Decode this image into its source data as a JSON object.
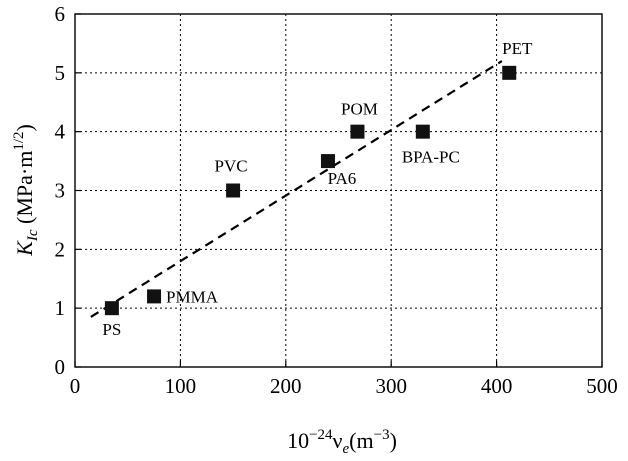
{
  "chart_data": {
    "type": "scatter",
    "xlim": [
      0,
      500
    ],
    "ylim": [
      0,
      6
    ],
    "x_ticks": [
      0,
      100,
      200,
      300,
      400,
      500
    ],
    "y_ticks": [
      0,
      1,
      2,
      3,
      4,
      5,
      6
    ],
    "grid": true,
    "points": [
      {
        "label": "PS",
        "x": 35,
        "y": 1.0
      },
      {
        "label": "PMMA",
        "x": 75,
        "y": 1.2
      },
      {
        "label": "PVC",
        "x": 150,
        "y": 3.0
      },
      {
        "label": "PA6",
        "x": 240,
        "y": 3.5
      },
      {
        "label": "POM",
        "x": 268,
        "y": 4.0
      },
      {
        "label": "BPA-PC",
        "x": 330,
        "y": 4.0
      },
      {
        "label": "PET",
        "x": 412,
        "y": 5.0
      }
    ],
    "trendline": {
      "style": "dashed",
      "x": [
        15,
        405
      ],
      "y": [
        0.85,
        5.2
      ]
    },
    "xlabel": {
      "base": "10",
      "exp": "−24",
      "symbol": "ν",
      "sub": "e",
      "unit_open": "(m",
      "unit_exp": "−3",
      "unit_close": ")"
    },
    "ylabel": {
      "symbol": "K",
      "sub": "Ic",
      "unit_open": " (MPa·m",
      "unit_exp": "1/2",
      "unit_close": ")"
    }
  }
}
